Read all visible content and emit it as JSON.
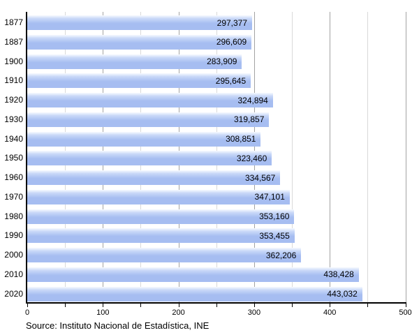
{
  "chart_data": {
    "type": "bar",
    "orientation": "horizontal",
    "title": "",
    "xlabel": "",
    "ylabel": "",
    "legend_position": "none",
    "categories": [
      "1877",
      "1887",
      "1900",
      "1910",
      "1920",
      "1930",
      "1940",
      "1950",
      "1960",
      "1970",
      "1980",
      "1990",
      "2000",
      "2010",
      "2020"
    ],
    "values": [
      297377,
      296609,
      283909,
      295645,
      324894,
      319857,
      308851,
      323460,
      334567,
      347101,
      353160,
      353455,
      362206,
      438428,
      443032
    ],
    "value_label_format": "thousands-comma",
    "x_axis": {
      "min": 0,
      "max": 500,
      "unit": "thousands of persons",
      "major_tick_step": 100,
      "minor_tick_step": 50,
      "tick_labels": [
        "0",
        "100",
        "200",
        "300",
        "400",
        "500"
      ]
    },
    "grid": {
      "enabled": true,
      "step": 50,
      "minor_color": "#d9d9d9",
      "major_color": "#a3a3a3"
    }
  },
  "colors": {
    "bar_fill": "#a6bdf1",
    "bar_gloss_top": "#f7faff",
    "bar_gloss_mid": "#c9d8f8",
    "axis": "#000000",
    "text": "#000000",
    "background": "#ffffff"
  },
  "footer": {
    "source": "Source: Instituto Nacional de Estadística, INE"
  }
}
